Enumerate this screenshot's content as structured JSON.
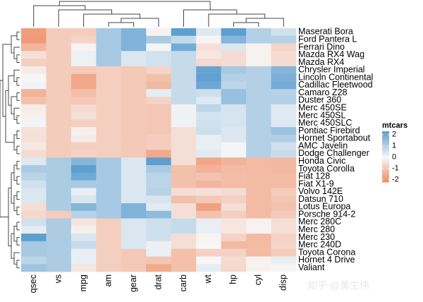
{
  "chart_data": {
    "type": "heatmap",
    "legend_title": "mtcars",
    "watermark": "知乎 @黄生伟",
    "columns": [
      "qsec",
      "vs",
      "mpg",
      "am",
      "gear",
      "drat",
      "carb",
      "wt",
      "hp",
      "cyl",
      "disp"
    ],
    "rows": [
      "Maserati Bora",
      "Ford Pantera L",
      "Ferrari Dino",
      "Mazda RX4 Wag",
      "Mazda RX4",
      "Chrysler Imperial",
      "Lincoln Continental",
      "Cadillac Fleetwood",
      "Camaro Z28",
      "Duster 360",
      "Merc 450SE",
      "Merc 450SL",
      "Merc 450SLC",
      "Pontiac Firebird",
      "Hornet Sportabout",
      "AMC Javelin",
      "Dodge Challenger",
      "Honda Civic",
      "Toyota Corolla",
      "Fiat 128",
      "Fiat X1-9",
      "Volvo 142E",
      "Datsun 710",
      "Lotus Europa",
      "Porsche 914-2",
      "Merc 280C",
      "Merc 280",
      "Merc 230",
      "Merc 240D",
      "Toyota Corona",
      "Hornet 4 Drive",
      "Valiant"
    ],
    "values": [
      [
        -1.82,
        -0.87,
        -0.84,
        1.19,
        1.78,
        -0.11,
        3.21,
        0.36,
        2.75,
        1.01,
        0.57
      ],
      [
        -1.87,
        -0.87,
        -0.71,
        1.19,
        1.78,
        1.16,
        0.74,
        -0.05,
        1.71,
        1.01,
        0.97
      ],
      [
        -1.31,
        -0.87,
        -0.06,
        1.19,
        1.78,
        0.04,
        1.97,
        -0.46,
        0.41,
        -0.1,
        -0.69
      ],
      [
        -0.46,
        -0.87,
        0.15,
        1.19,
        0.42,
        0.57,
        0.74,
        -0.35,
        -0.54,
        -0.1,
        -0.57
      ],
      [
        -0.78,
        -0.87,
        0.15,
        1.19,
        0.42,
        0.57,
        0.74,
        -0.61,
        -0.54,
        -0.1,
        -0.57
      ],
      [
        -0.24,
        -0.87,
        -0.89,
        -0.81,
        -0.93,
        -0.69,
        0.74,
        2.18,
        1.21,
        1.01,
        1.69
      ],
      [
        -0.02,
        -0.87,
        -1.61,
        -0.81,
        -0.93,
        -1.12,
        0.74,
        2.26,
        1.0,
        1.01,
        1.85
      ],
      [
        0.07,
        -0.87,
        -1.61,
        -0.81,
        -0.93,
        -1.25,
        0.74,
        2.08,
        0.85,
        1.01,
        1.95
      ],
      [
        -1.37,
        -0.87,
        -1.13,
        -0.81,
        -0.93,
        0.25,
        0.74,
        0.64,
        1.43,
        1.01,
        0.96
      ],
      [
        -1.12,
        -0.87,
        -0.96,
        -0.81,
        -0.93,
        -0.72,
        0.74,
        0.36,
        1.43,
        1.01,
        1.04
      ],
      [
        -0.25,
        -0.87,
        -0.61,
        -0.81,
        -0.93,
        -0.98,
        0.12,
        0.87,
        0.49,
        1.01,
        0.36
      ],
      [
        -0.14,
        -0.87,
        -0.46,
        -0.81,
        -0.93,
        -0.98,
        0.12,
        0.52,
        0.49,
        1.01,
        0.36
      ],
      [
        0.08,
        -0.87,
        -0.81,
        -0.81,
        -0.93,
        -0.98,
        0.12,
        0.58,
        0.49,
        1.01,
        0.36
      ],
      [
        -0.45,
        -0.87,
        -0.15,
        -0.81,
        -0.93,
        -0.97,
        -0.5,
        0.64,
        0.41,
        1.01,
        1.37
      ],
      [
        -0.46,
        -0.87,
        -0.23,
        -0.81,
        -0.93,
        -0.84,
        -0.5,
        0.23,
        0.41,
        1.01,
        1.04
      ],
      [
        -0.31,
        -0.87,
        -0.81,
        -0.81,
        -0.93,
        -0.84,
        -0.5,
        0.22,
        0.05,
        1.01,
        0.59
      ],
      [
        -0.55,
        -0.87,
        -0.76,
        -0.81,
        -0.93,
        -1.56,
        -0.5,
        0.31,
        0.05,
        1.01,
        0.7
      ],
      [
        0.37,
        1.12,
        1.71,
        1.19,
        0.42,
        2.49,
        -0.5,
        -1.64,
        -1.38,
        -1.22,
        -1.25
      ],
      [
        1.15,
        1.12,
        2.29,
        1.19,
        0.42,
        1.16,
        -1.12,
        -1.41,
        -1.19,
        -1.22,
        -1.29
      ],
      [
        0.91,
        1.12,
        2.04,
        1.19,
        0.42,
        0.9,
        -1.12,
        -1.04,
        -1.18,
        -1.22,
        -1.23
      ],
      [
        0.59,
        1.12,
        1.2,
        1.19,
        0.42,
        0.9,
        -1.12,
        -1.31,
        -1.18,
        -1.22,
        -1.22
      ],
      [
        0.42,
        1.12,
        0.22,
        1.19,
        0.42,
        0.96,
        -0.5,
        -0.45,
        -0.55,
        -1.22,
        -0.89
      ],
      [
        0.43,
        1.12,
        0.45,
        1.19,
        0.42,
        0.47,
        -1.12,
        -0.92,
        -0.78,
        -1.22,
        -0.99
      ],
      [
        -0.53,
        1.12,
        1.71,
        1.19,
        1.78,
        0.32,
        -0.5,
        -1.74,
        -0.49,
        -1.22,
        -1.09
      ],
      [
        -0.64,
        -0.87,
        0.98,
        1.19,
        1.78,
        1.56,
        -0.5,
        -1.1,
        -0.81,
        -1.22,
        -0.89
      ],
      [
        0.59,
        1.12,
        -0.38,
        -0.81,
        0.42,
        0.6,
        0.74,
        0.23,
        -0.35,
        -0.1,
        -0.51
      ],
      [
        0.25,
        1.12,
        -0.15,
        -0.81,
        0.42,
        0.6,
        0.74,
        0.23,
        -0.35,
        -0.1,
        -0.51
      ],
      [
        2.83,
        1.12,
        0.45,
        -0.81,
        0.42,
        0.6,
        -0.5,
        -0.07,
        -0.75,
        -1.22,
        -0.73
      ],
      [
        1.2,
        1.12,
        0.72,
        -0.81,
        0.42,
        0.17,
        -0.5,
        -0.03,
        -1.24,
        -1.22,
        -0.68
      ],
      [
        1.21,
        1.12,
        0.23,
        -0.81,
        -0.93,
        0.19,
        -1.12,
        -0.77,
        -0.72,
        -1.22,
        -0.89
      ],
      [
        0.89,
        1.12,
        0.22,
        -0.81,
        -0.93,
        -0.97,
        -1.12,
        0.0,
        -0.54,
        -0.1,
        0.22
      ],
      [
        1.33,
        1.12,
        -0.33,
        -0.81,
        -0.93,
        -1.56,
        -1.12,
        0.25,
        -0.61,
        -0.1,
        -0.05
      ]
    ],
    "colorlim": [
      -2.2,
      2.3
    ],
    "colorticks": [
      2,
      1,
      0,
      -1,
      -2
    ],
    "colors": {
      "low": "#ef8a62",
      "mid": "#f7f7f7",
      "high": "#5e9fd0"
    }
  }
}
